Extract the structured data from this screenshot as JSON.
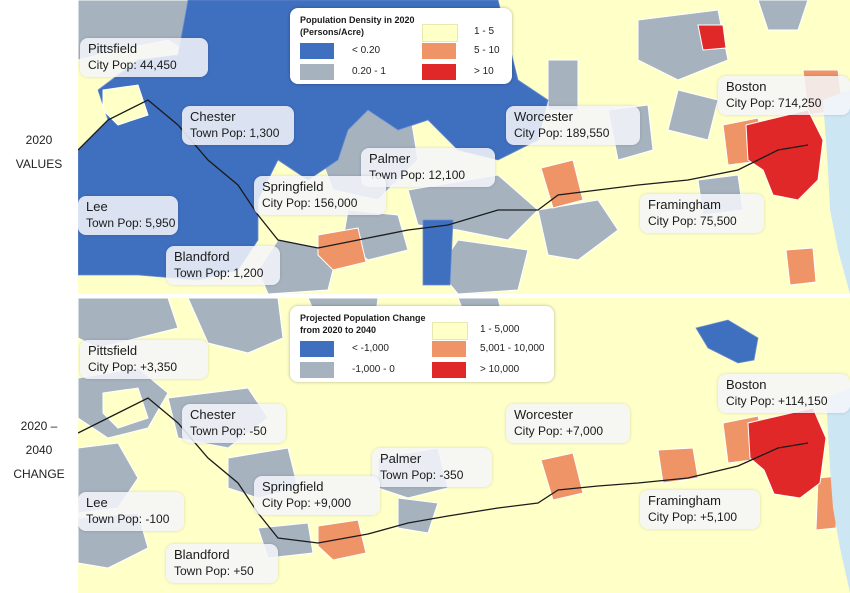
{
  "row_labels": {
    "top": [
      "2020",
      "VALUES"
    ],
    "bottom": [
      "2020 –",
      "2040",
      "CHANGE"
    ]
  },
  "colors": {
    "dark_blue": "#3f6fbf",
    "gray_blue": "#a6b3bf",
    "light_yellow": "#ffffc8",
    "orange": "#ee9466",
    "red": "#e02828",
    "water": "#cde6f3"
  },
  "top_map": {
    "legend": {
      "title_lines": [
        "Population Density in 2020",
        "(Persons/Acre)"
      ],
      "items": [
        {
          "label": "< 0.20",
          "color": "#3f6fbf"
        },
        {
          "label": "0.20 - 1",
          "color": "#a6b3bf"
        },
        {
          "label": "1 - 5",
          "color": "#ffffc8"
        },
        {
          "label": "5 - 10",
          "color": "#ee9466"
        },
        {
          "label": "> 10",
          "color": "#e02828"
        }
      ]
    },
    "cities": [
      {
        "name": "Pittsfield",
        "pop": "City Pop: 44,450"
      },
      {
        "name": "Chester",
        "pop": "Town Pop: 1,300"
      },
      {
        "name": "Palmer",
        "pop": "Town Pop: 12,100"
      },
      {
        "name": "Worcester",
        "pop": "City Pop: 189,550"
      },
      {
        "name": "Boston",
        "pop": "City Pop: 714,250"
      },
      {
        "name": "Springfield",
        "pop": "City Pop: 156,000"
      },
      {
        "name": "Lee",
        "pop": "Town Pop: 5,950"
      },
      {
        "name": "Blandford",
        "pop": "Town Pop: 1,200"
      },
      {
        "name": "Framingham",
        "pop": "City Pop: 75,500"
      }
    ]
  },
  "bottom_map": {
    "legend": {
      "title_lines": [
        "Projected Population Change",
        "from 2020 to 2040"
      ],
      "items": [
        {
          "label": "< -1,000",
          "color": "#3f6fbf"
        },
        {
          "label": "-1,000 - 0",
          "color": "#a6b3bf"
        },
        {
          "label": "1 - 5,000",
          "color": "#ffffc8"
        },
        {
          "label": "5,001 - 10,000",
          "color": "#ee9466"
        },
        {
          "label": "> 10,000",
          "color": "#e02828"
        }
      ]
    },
    "cities": [
      {
        "name": "Pittsfield",
        "pop": "City Pop: +3,350"
      },
      {
        "name": "Chester",
        "pop": "Town Pop: -50"
      },
      {
        "name": "Palmer",
        "pop": "Town Pop: -350"
      },
      {
        "name": "Worcester",
        "pop": "City Pop: +7,000"
      },
      {
        "name": "Boston",
        "pop": "City Pop: +114,150"
      },
      {
        "name": "Springfield",
        "pop": "City Pop: +9,000"
      },
      {
        "name": "Lee",
        "pop": "Town Pop: -100"
      },
      {
        "name": "Blandford",
        "pop": "Town Pop: +50"
      },
      {
        "name": "Framingham",
        "pop": "City Pop: +5,100"
      }
    ]
  }
}
